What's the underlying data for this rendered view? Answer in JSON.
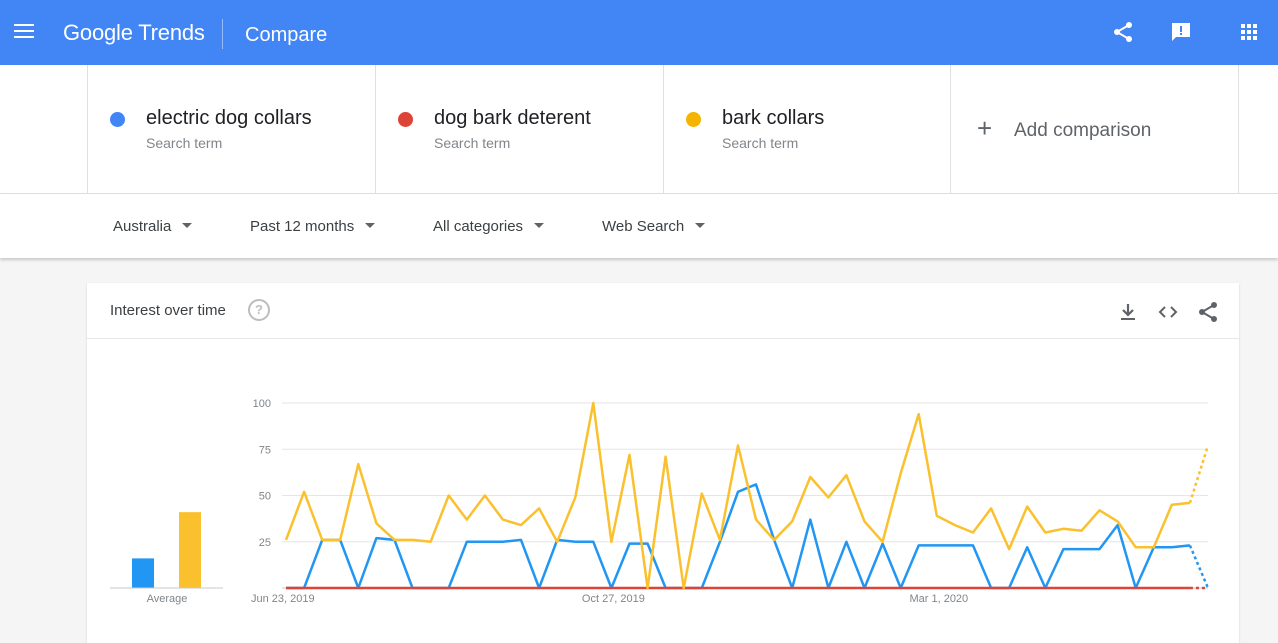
{
  "header": {
    "brand": "Google Trends",
    "page_title": "Compare",
    "bg_color": "#4285f4",
    "icons": [
      "menu-icon",
      "share-icon",
      "feedback-icon",
      "apps-icon"
    ]
  },
  "terms": [
    {
      "name": "electric dog collars",
      "subtitle": "Search term",
      "color": "#4285f4"
    },
    {
      "name": "dog bark deterent",
      "subtitle": "Search term",
      "color": "#db4437"
    },
    {
      "name": "bark collars",
      "subtitle": "Search term",
      "color": "#f4b400"
    }
  ],
  "add_comparison": {
    "plus": "+",
    "label": "Add comparison"
  },
  "filters": {
    "region": "Australia",
    "time": "Past 12 months",
    "category": "All categories",
    "search_type": "Web Search"
  },
  "card": {
    "title": "Interest over time",
    "help": "?",
    "icons": [
      "download-icon",
      "embed-icon",
      "share-icon"
    ]
  },
  "chart_data": {
    "type": "line",
    "ylim": [
      0,
      100
    ],
    "y_ticks": [
      "100",
      "75",
      "50",
      "25"
    ],
    "x_tick_labels": [
      "Jun 23, 2019",
      "Oct 27, 2019",
      "Mar 1, 2020"
    ],
    "x_tick_indices": [
      0,
      18,
      36
    ],
    "avg_label": "Average",
    "averages": [
      16,
      41
    ],
    "average_colors": [
      "#2196f3",
      "#fbc02d"
    ],
    "partial_last_point": true,
    "series": [
      {
        "name": "electric dog collars",
        "color": "#2196f3",
        "values": [
          0,
          0,
          26,
          26,
          0,
          27,
          26,
          0,
          0,
          0,
          25,
          25,
          25,
          26,
          0,
          26,
          25,
          25,
          0,
          24,
          24,
          0,
          0,
          0,
          25,
          52,
          56,
          26,
          0,
          37,
          0,
          25,
          0,
          24,
          0,
          23,
          23,
          23,
          23,
          0,
          0,
          22,
          0,
          21,
          21,
          21,
          34,
          0,
          22,
          22,
          23,
          0
        ]
      },
      {
        "name": "dog bark deterent",
        "color": "#db4437",
        "values": [
          0,
          0,
          0,
          0,
          0,
          0,
          0,
          0,
          0,
          0,
          0,
          0,
          0,
          0,
          0,
          0,
          0,
          0,
          0,
          0,
          0,
          0,
          0,
          0,
          0,
          0,
          0,
          0,
          0,
          0,
          0,
          0,
          0,
          0,
          0,
          0,
          0,
          0,
          0,
          0,
          0,
          0,
          0,
          0,
          0,
          0,
          0,
          0,
          0,
          0,
          0,
          0
        ]
      },
      {
        "name": "bark collars",
        "color": "#fbc02d",
        "values": [
          26,
          52,
          26,
          26,
          67,
          35,
          26,
          26,
          25,
          50,
          37,
          50,
          37,
          34,
          43,
          25,
          49,
          100,
          25,
          72,
          0,
          71,
          0,
          51,
          26,
          77,
          37,
          26,
          36,
          60,
          49,
          61,
          36,
          25,
          62,
          94,
          39,
          34,
          30,
          43,
          21,
          44,
          30,
          32,
          31,
          42,
          36,
          22,
          22,
          45,
          46,
          77
        ]
      }
    ]
  }
}
